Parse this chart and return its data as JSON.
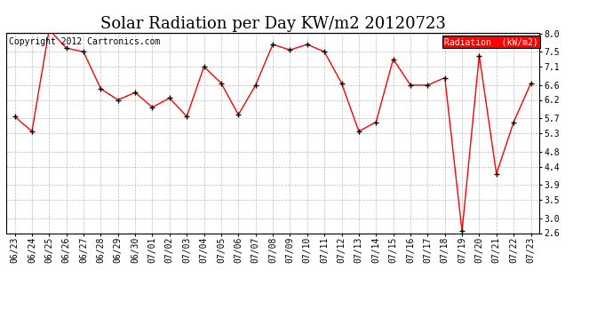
{
  "title": "Solar Radiation per Day KW/m2 20120723",
  "copyright_text": "Copyright 2012 Cartronics.com",
  "legend_label": "Radiation  (kW/m2)",
  "dates": [
    "06/23",
    "06/24",
    "06/25",
    "06/26",
    "06/27",
    "06/28",
    "06/29",
    "06/30",
    "07/01",
    "07/02",
    "07/03",
    "07/04",
    "07/05",
    "07/06",
    "07/07",
    "07/08",
    "07/09",
    "07/10",
    "07/11",
    "07/12",
    "07/13",
    "07/14",
    "07/15",
    "07/16",
    "07/17",
    "07/18",
    "07/19",
    "07/20",
    "07/21",
    "07/22",
    "07/23"
  ],
  "values": [
    5.75,
    5.35,
    8.1,
    7.6,
    7.5,
    6.5,
    6.2,
    6.4,
    6.0,
    6.25,
    5.75,
    7.1,
    6.65,
    5.8,
    6.6,
    7.7,
    7.55,
    7.7,
    7.5,
    6.65,
    5.35,
    5.6,
    7.3,
    6.6,
    6.6,
    6.8,
    2.65,
    7.4,
    4.2,
    5.6,
    6.65
  ],
  "line_color": "red",
  "marker_color": "black",
  "bg_color": "white",
  "grid_color": "#bbbbbb",
  "ylim_min": 2.6,
  "ylim_max": 8.0,
  "yticks": [
    2.6,
    3.0,
    3.5,
    3.9,
    4.4,
    4.8,
    5.3,
    5.7,
    6.2,
    6.6,
    7.1,
    7.5,
    8.0
  ],
  "legend_bg": "red",
  "legend_text_color": "white",
  "title_fontsize": 13,
  "tick_fontsize": 7,
  "copyright_fontsize": 7
}
